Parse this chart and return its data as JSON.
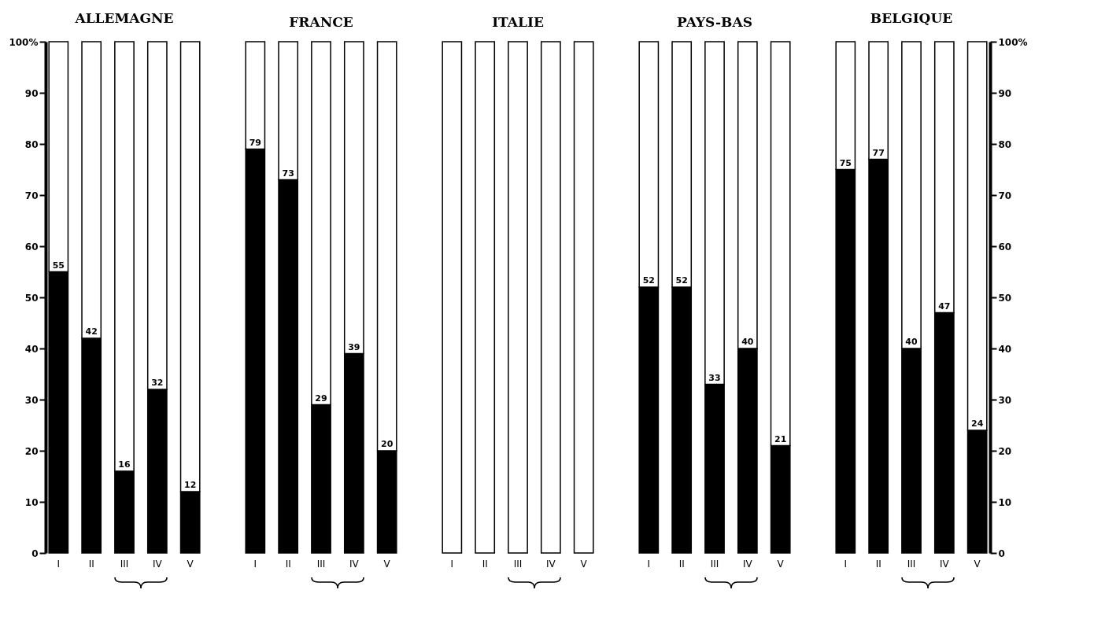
{
  "chart_data": [
    {
      "type": "bar",
      "stacked": true,
      "title": "ALLEMAGNE",
      "categories": [
        "I",
        "II",
        "III",
        "IV",
        "V"
      ],
      "ylim": [
        0,
        100
      ],
      "yticks": [
        0,
        10,
        20,
        30,
        40,
        50,
        60,
        70,
        80,
        90,
        {
          "value": 100,
          "label": "100%"
        }
      ],
      "series": [
        {
          "color": "#000000",
          "values": [
            55,
            42,
            16,
            32,
            12
          ],
          "value_labels": [
            "55",
            "42",
            "16",
            "32",
            "12"
          ]
        },
        {
          "color": "#ffffff",
          "values": [
            45,
            58,
            84,
            68,
            88
          ]
        }
      ]
    },
    {
      "type": "bar",
      "stacked": true,
      "title": "FRANCE",
      "categories": [
        "I",
        "II",
        "III",
        "IV",
        "V"
      ],
      "ylim": [
        0,
        100
      ],
      "tick_labels": "x",
      "series": [
        {
          "color": "#000000",
          "values": [
            79,
            73,
            29,
            39,
            20
          ],
          "value_labels": [
            "79",
            "73",
            "29",
            "39",
            "20"
          ]
        },
        {
          "color": "#ffffff",
          "values": [
            21,
            27,
            71,
            61,
            80
          ]
        }
      ]
    },
    {
      "type": "bar",
      "stacked": true,
      "title": "ITALIE",
      "categories": [
        "I",
        "II",
        "III",
        "IV",
        "V"
      ],
      "ylim": [
        0,
        100
      ],
      "tick_labels": "x",
      "series": [
        {
          "color": "#000000",
          "values": [
            null,
            null,
            null,
            null,
            null
          ]
        },
        {
          "color": "#ffffff",
          "values": [
            100,
            100,
            100,
            100,
            100
          ]
        }
      ]
    },
    {
      "type": "bar",
      "stacked": true,
      "title": "PAYS-BAS",
      "categories": [
        "I",
        "II",
        "III",
        "IV",
        "V"
      ],
      "ylim": [
        0,
        100
      ],
      "tick_labels": "x",
      "series": [
        {
          "color": "#000000",
          "values": [
            52,
            52,
            33,
            40,
            21
          ],
          "value_labels": [
            "52",
            "52",
            "33",
            "40",
            "21"
          ]
        },
        {
          "color": "#ffffff",
          "values": [
            48,
            48,
            67,
            60,
            79
          ]
        }
      ]
    },
    {
      "type": "bar",
      "stacked": true,
      "title": "BELGIQUE",
      "categories": [
        "I",
        "II",
        "III",
        "IV",
        "V"
      ],
      "ylim": [
        0,
        100
      ],
      "yticks": [
        0,
        10,
        20,
        30,
        40,
        50,
        60,
        70,
        80,
        90,
        {
          "value": 100,
          "label": "100%"
        }
      ],
      "series": [
        {
          "color": "#000000",
          "values": [
            75,
            77,
            40,
            47,
            24
          ],
          "value_labels": [
            "75",
            "77",
            "40",
            "47",
            "24"
          ]
        },
        {
          "color": "#ffffff",
          "values": [
            25,
            23,
            60,
            53,
            76
          ]
        }
      ]
    }
  ]
}
